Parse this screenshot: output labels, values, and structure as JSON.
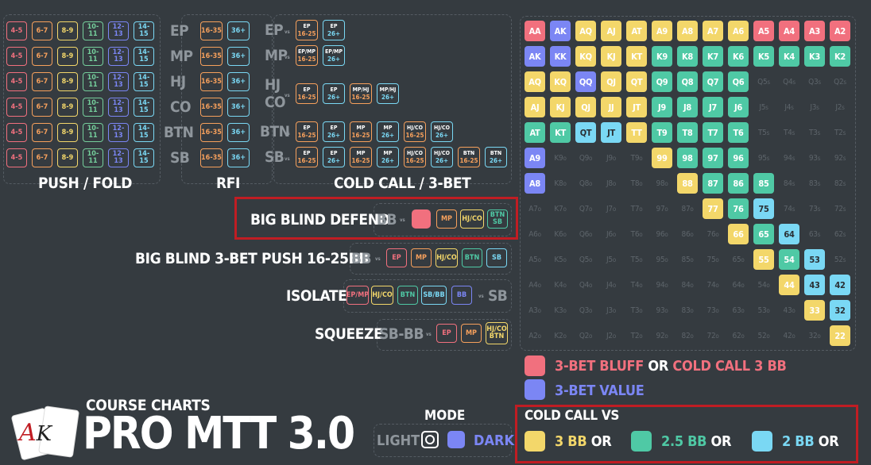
{
  "push_fold": {
    "positions": [
      "EP",
      "MP",
      "HJ",
      "CO",
      "BTN",
      "SB"
    ],
    "chips": [
      "4-5",
      "6-7",
      "8-9",
      "10-11",
      "12-13",
      "14-15"
    ],
    "label": "PUSH / FOLD"
  },
  "rfi": {
    "chips": [
      "16-35",
      "36+"
    ],
    "label": "RFI"
  },
  "cold_call": {
    "positions": [
      "EP",
      "MP",
      "HJ",
      "CO",
      "BTN",
      "SB"
    ],
    "vs": "vs",
    "rows": [
      [
        [
          "EP",
          "16-25"
        ],
        [
          "EP",
          "26+"
        ]
      ],
      [
        [
          "EP/MP",
          "16-25"
        ],
        [
          "EP/MP",
          "26+"
        ]
      ],
      [
        [
          "EP",
          "16-25"
        ],
        [
          "EP",
          "26+"
        ],
        [
          "MP/HJ",
          "16-25"
        ],
        [
          "MP/HJ",
          "26+"
        ]
      ],
      [
        [
          "EP",
          "16-25"
        ],
        [
          "EP",
          "26+"
        ],
        [
          "MP",
          "16-25"
        ],
        [
          "MP",
          "26+"
        ],
        [
          "HJ/CO",
          "16-25"
        ],
        [
          "HJ/CO",
          "26+"
        ]
      ],
      [
        [
          "EP",
          "16-25"
        ],
        [
          "EP",
          "26+"
        ],
        [
          "MP",
          "16-25"
        ],
        [
          "MP",
          "26+"
        ],
        [
          "HJ/CO",
          "16-25"
        ],
        [
          "HJ/CO",
          "26+"
        ],
        [
          "BTN",
          "16-25"
        ],
        [
          "BTN",
          "26+"
        ]
      ]
    ],
    "label": "COLD CALL / 3-BET"
  },
  "bb_defend": {
    "title": "BIG BLIND DEFEND",
    "pos": "BB",
    "vs": "vs",
    "chips": [
      "MP",
      "HJ/CO",
      "BTN SB"
    ]
  },
  "bb_3bet": {
    "title": "BIG BLIND 3-BET PUSH 16-25BB",
    "pos": "BB",
    "vs": "vs",
    "chips": [
      "EP",
      "MP",
      "HJ/CO",
      "BTN",
      "SB"
    ]
  },
  "isolate": {
    "title": "ISOLATE",
    "vs": "vs",
    "chips": [
      "EP/MP",
      "HJ/CO",
      "BTN",
      "SB/BB",
      "BB"
    ],
    "pos": "SB"
  },
  "squeeze": {
    "title": "SQUEEZE",
    "pos": "SB-BB",
    "vs": "vs",
    "chips": [
      "EP",
      "MP",
      "HJ/CO BTN"
    ]
  },
  "course": {
    "subtitle": "COURSE CHARTS",
    "title": "PRO MTT 3.0",
    "logo_letters": "AK"
  },
  "mode": {
    "label": "MODE",
    "light": "LIGHT",
    "dark": "DARK"
  },
  "legend": {
    "bluff_a": "3-BET BLUFF",
    "or": "OR",
    "bluff_b": "COLD CALL 3 BB",
    "value": "3-BET VALUE",
    "cc_title": "COLD CALL VS",
    "cc_items": [
      "3 BB",
      "2.5 BB",
      "2 BB"
    ]
  },
  "colors": {
    "pink": "#f1707e",
    "blue": "#7b86f4",
    "yellow": "#f3d76a",
    "teal": "#4fc9a5",
    "cyan": "#7ad8f4",
    "orange": "#f6a05c",
    "green": "#75cf9c",
    "purple": "#a98ff0",
    "panel_border": "#555c63",
    "red_box": "#c01d23"
  },
  "range_grid": {
    "ranks": [
      "A",
      "K",
      "Q",
      "J",
      "T",
      "9",
      "8",
      "7",
      "6",
      "5",
      "4",
      "3",
      "2"
    ],
    "codes": [
      "PBYYYYYYYPPPP",
      "BBYYYTTTTTTTT",
      "YYBYYTTTTeeee",
      "YYYYYTTTTeeee",
      "TTCCYTTTTeeee",
      "BeeeeYTTTeeee",
      "BeeeeeYTTTeee",
      "eeeeeeeYTCeee",
      "eeeeeeeeYTCee",
      "eeeeeeeeeYTCe",
      "eeeeeeeeeeYCC",
      "eeeeeeeeeeeYC",
      "eeeeeeeeeeeeY"
    ]
  }
}
